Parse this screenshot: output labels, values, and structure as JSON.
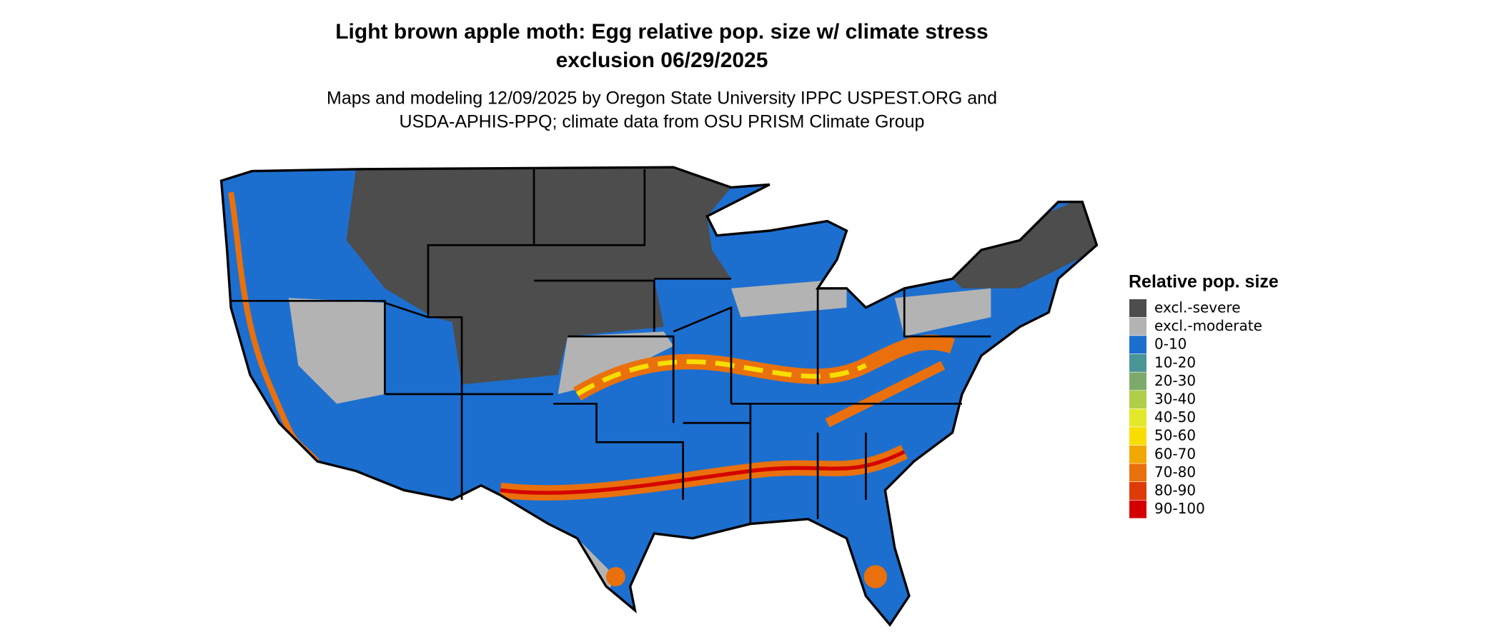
{
  "title": [
    "Light brown apple moth: Egg relative pop. size w/ climate stress",
    "exclusion 06/29/2025"
  ],
  "subtitle": [
    "Maps and modeling 12/09/2025 by Oregon State University IPPC USPEST.ORG and",
    "USDA-APHIS-PPQ; climate data from OSU PRISM Climate Group"
  ],
  "legend": {
    "title": "Relative pop. size",
    "items": [
      {
        "label": "excl.-severe",
        "color": "#4d4d4d"
      },
      {
        "label": "excl.-moderate",
        "color": "#b3b3b3"
      },
      {
        "label": "0-10",
        "color": "#1c6fcf"
      },
      {
        "label": "10-20",
        "color": "#4a9596"
      },
      {
        "label": "20-30",
        "color": "#7daa6a"
      },
      {
        "label": "30-40",
        "color": "#b0ce48"
      },
      {
        "label": "40-50",
        "color": "#e3e82a"
      },
      {
        "label": "50-60",
        "color": "#f8de00"
      },
      {
        "label": "60-70",
        "color": "#f1a800"
      },
      {
        "label": "70-80",
        "color": "#e9700c"
      },
      {
        "label": "80-90",
        "color": "#de3b08"
      },
      {
        "label": "90-100",
        "color": "#d40000"
      }
    ]
  }
}
